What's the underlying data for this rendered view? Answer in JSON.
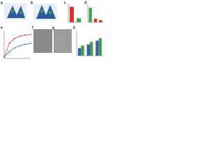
{
  "panels": [
    "a",
    "b",
    "c",
    "d",
    "e",
    "f",
    "g",
    "h"
  ],
  "chart_data": [
    {
      "type": "bar",
      "categories": [
        null,
        null
      ],
      "values": [
        85,
        22
      ],
      "colors": [
        "#d9352b",
        "#3fa34d"
      ],
      "ylim": [
        0,
        100
      ]
    },
    {
      "type": "bar",
      "categories": [
        null,
        null,
        null
      ],
      "values": [
        80,
        20,
        12
      ],
      "colors": [
        "#3fa34d",
        "#d9352b",
        "#d9352b"
      ],
      "ylim": [
        0,
        100
      ]
    },
    {
      "type": "line",
      "x": [
        0,
        2,
        4,
        6,
        8,
        10
      ],
      "xlim": [
        0,
        10
      ],
      "ylim": [
        0,
        100
      ],
      "series": [
        {
          "color": "#d9352b",
          "values": [
            5,
            55,
            72,
            80,
            84,
            86
          ]
        },
        {
          "color": "#3b5bb5",
          "values": [
            5,
            25,
            38,
            46,
            51,
            54
          ]
        }
      ]
    },
    {
      "type": "groupbar",
      "categories": [
        null,
        null,
        null
      ],
      "ylim": [
        0,
        100
      ],
      "series": [
        {
          "color": "#3b5bb5",
          "values": [
            30,
            45,
            60
          ]
        },
        {
          "color": "#3fa34d",
          "values": [
            40,
            55,
            70
          ]
        }
      ]
    }
  ]
}
